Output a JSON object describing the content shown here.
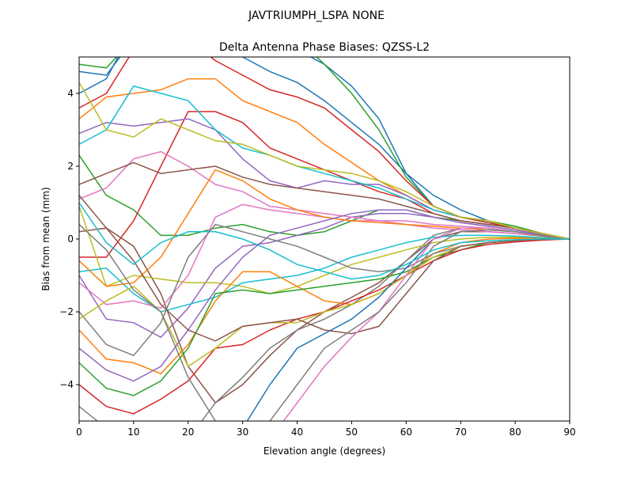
{
  "chart_data": {
    "type": "line",
    "suptitle": "JAVTRIUMPH_LSPA NONE",
    "title": "Delta Antenna Phase Biases: QZSS-L2",
    "xlabel": "Elevation angle (degrees)",
    "ylabel": "Bias from mean (mm)",
    "xlim": [
      0,
      90
    ],
    "ylim": [
      -5,
      5
    ],
    "xticks": [
      0,
      10,
      20,
      30,
      40,
      50,
      60,
      70,
      80,
      90
    ],
    "yticks": [
      -4,
      -2,
      0,
      2,
      4
    ],
    "grid": false,
    "colors": [
      "#1f77b4",
      "#ff7f0e",
      "#2ca02c",
      "#d62728",
      "#9467bd",
      "#8c564b",
      "#e377c2",
      "#7f7f7f",
      "#bcbd22",
      "#17becf"
    ],
    "x": [
      0,
      5,
      10,
      15,
      20,
      25,
      30,
      35,
      40,
      45,
      50,
      55,
      60,
      65,
      70,
      75,
      80,
      85,
      90
    ],
    "series": [
      {
        "values": [
          4.6,
          4.5,
          5.5,
          6,
          6,
          6,
          5.8,
          5.5,
          5.2,
          4.8,
          4.2,
          3.3,
          1.8,
          0.9,
          0.6,
          0.5,
          0.3,
          0.15,
          0
        ]
      },
      {
        "values": [
          3.3,
          3.9,
          4.0,
          4.1,
          4.4,
          4.4,
          3.8,
          3.5,
          3.2,
          2.6,
          2.1,
          1.6,
          1.2,
          0.8,
          0.6,
          0.5,
          0.3,
          0.15,
          0
        ]
      },
      {
        "values": [
          2.3,
          1.2,
          0.8,
          0.1,
          0.1,
          0.3,
          0.4,
          0.2,
          0.1,
          0.2,
          0.5,
          0.8,
          0.8,
          0.6,
          0.5,
          0.4,
          0.3,
          0.15,
          0
        ]
      },
      {
        "values": [
          -0.5,
          -0.5,
          0.5,
          2.0,
          3.5,
          3.5,
          3.2,
          2.5,
          2.2,
          1.9,
          1.6,
          1.3,
          1.1,
          0.7,
          0.5,
          0.4,
          0.3,
          0.15,
          0
        ]
      },
      {
        "values": [
          -1.0,
          -2.2,
          -2.3,
          -2.7,
          -1.9,
          -0.8,
          -0.2,
          -0.1,
          0.1,
          0.3,
          0.6,
          0.7,
          0.7,
          0.6,
          0.45,
          0.35,
          0.25,
          0.12,
          0
        ]
      },
      {
        "values": [
          0.2,
          0.3,
          -0.2,
          -1.5,
          -3.5,
          -4.5,
          -4.0,
          -3.2,
          -2.5,
          -2.0,
          -1.6,
          -1.2,
          -0.6,
          0,
          0.2,
          0.2,
          0.15,
          0.08,
          0
        ]
      },
      {
        "values": [
          1.1,
          1.4,
          2.2,
          2.4,
          2.0,
          1.5,
          1.3,
          0.9,
          0.8,
          0.7,
          0.6,
          0.5,
          0.4,
          0.3,
          0.25,
          0.2,
          0.15,
          0.1,
          0
        ]
      },
      {
        "values": [
          -4.6,
          -5.2,
          -6,
          -6,
          -5.5,
          -4.5,
          -3.8,
          -3.0,
          -2.5,
          -2.2,
          -1.8,
          -1.3,
          -0.6,
          0.1,
          0.3,
          0.3,
          0.2,
          0.1,
          0
        ]
      },
      {
        "values": [
          0.9,
          -1.3,
          -1.0,
          -1.1,
          -1.2,
          -1.2,
          -1.3,
          -1.5,
          -1.3,
          -1.0,
          -0.7,
          -0.5,
          -0.3,
          -0.1,
          0,
          0.05,
          0.05,
          0.02,
          0
        ]
      },
      {
        "values": [
          -0.9,
          -0.8,
          -1.5,
          -2.0,
          -1.8,
          -1.6,
          -1.2,
          -1.1,
          -1.0,
          -0.8,
          -0.5,
          -0.3,
          -0.1,
          0.05,
          0.1,
          0.1,
          0.08,
          0.04,
          0
        ]
      },
      {
        "values": [
          4.0,
          4.4,
          5.8,
          6,
          6,
          5.5,
          5.0,
          4.6,
          4.3,
          3.8,
          3.2,
          2.6,
          1.8,
          1.2,
          0.8,
          0.5,
          0.3,
          0.15,
          0
        ]
      },
      {
        "values": [
          -2.5,
          -3.3,
          -3.4,
          -3.7,
          -2.9,
          -1.7,
          -0.9,
          -0.9,
          -1.3,
          -1.7,
          -1.8,
          -1.5,
          -1.0,
          -0.4,
          -0.1,
          0,
          0.02,
          0.01,
          0
        ]
      },
      {
        "values": [
          -3.4,
          -4.1,
          -4.3,
          -3.9,
          -3.0,
          -1.5,
          -1.4,
          -1.5,
          -1.4,
          -1.3,
          -1.2,
          -1.1,
          -0.9,
          -0.5,
          -0.3,
          -0.1,
          -0.05,
          0,
          0
        ]
      },
      {
        "values": [
          -4.0,
          -4.6,
          -4.8,
          -4.4,
          -3.9,
          -3.0,
          -2.9,
          -2.5,
          -2.2,
          -2.0,
          -1.7,
          -1.4,
          -1.0,
          -0.6,
          -0.3,
          -0.15,
          -0.08,
          -0.03,
          0
        ]
      },
      {
        "values": [
          2.9,
          3.2,
          3.1,
          3.2,
          3.3,
          3.0,
          2.2,
          1.6,
          1.4,
          1.6,
          1.5,
          1.5,
          1.2,
          0.8,
          0.6,
          0.45,
          0.3,
          0.15,
          0
        ]
      },
      {
        "values": [
          1.5,
          1.8,
          2.1,
          1.8,
          1.9,
          2.0,
          1.7,
          1.5,
          1.4,
          1.3,
          1.2,
          1.1,
          0.9,
          0.7,
          0.5,
          0.4,
          0.3,
          0.15,
          0
        ]
      },
      {
        "values": [
          -1.2,
          -1.8,
          -1.7,
          -1.9,
          -1.0,
          0.6,
          0.95,
          0.8,
          0.7,
          0.6,
          0.5,
          0.5,
          0.5,
          0.4,
          0.35,
          0.3,
          0.2,
          0.1,
          0
        ]
      },
      {
        "values": [
          -2.0,
          -2.9,
          -3.2,
          -2.3,
          -0.5,
          0.4,
          0.2,
          0,
          -0.2,
          -0.5,
          -0.8,
          -0.9,
          -0.8,
          -0.4,
          -0.2,
          -0.1,
          -0.05,
          0,
          0
        ]
      },
      {
        "values": [
          -2.2,
          -1.7,
          -1.3,
          -2.0,
          -3.5,
          -3.0,
          -2.4,
          -2.3,
          -2.3,
          -2.0,
          -1.8,
          -1.5,
          -1.0,
          -0.5,
          -0.2,
          -0.1,
          -0.05,
          0,
          0
        ]
      },
      {
        "values": [
          2.6,
          3.0,
          4.2,
          4.0,
          3.8,
          3.0,
          2.5,
          2.3,
          2.0,
          1.8,
          1.6,
          1.4,
          1.1,
          0.8,
          0.6,
          0.45,
          0.3,
          0.15,
          0
        ]
      },
      {
        "values": [
          -5.5,
          -6,
          -6,
          -6,
          -6,
          -6,
          -5.2,
          -4.0,
          -3.0,
          -2.6,
          -2.2,
          -1.6,
          -0.8,
          0,
          0.3,
          0.3,
          0.2,
          0.1,
          0
        ]
      },
      {
        "values": [
          -0.6,
          -1.3,
          -1.2,
          -0.5,
          0.7,
          1.9,
          1.6,
          1.1,
          0.8,
          0.6,
          0.5,
          0.45,
          0.4,
          0.35,
          0.3,
          0.25,
          0.2,
          0.1,
          0
        ]
      },
      {
        "values": [
          4.8,
          4.7,
          5.5,
          6,
          6,
          6,
          6,
          6,
          5.5,
          4.8,
          4.0,
          3.0,
          1.7,
          0.9,
          0.6,
          0.5,
          0.35,
          0.15,
          0
        ]
      },
      {
        "values": [
          3.6,
          4.0,
          5.2,
          6,
          5.5,
          4.9,
          4.5,
          4.1,
          3.9,
          3.6,
          3.0,
          2.4,
          1.6,
          0.9,
          0.6,
          0.45,
          0.3,
          0.15,
          0
        ]
      },
      {
        "values": [
          -3.0,
          -3.6,
          -3.9,
          -3.5,
          -2.5,
          -1.4,
          -0.5,
          0.1,
          0.3,
          0.5,
          0.7,
          0.8,
          0.8,
          0.6,
          0.45,
          0.35,
          0.25,
          0.12,
          0
        ]
      },
      {
        "values": [
          1.2,
          0.3,
          -0.6,
          -1.8,
          -2.5,
          -2.8,
          -2.4,
          -2.3,
          -2.2,
          -2.5,
          -2.6,
          -2.4,
          -1.5,
          -0.6,
          -0.2,
          -0.1,
          -0.05,
          0,
          0
        ]
      },
      {
        "values": [
          -6,
          -6,
          -6,
          -6,
          -6,
          -6,
          -6,
          -5.5,
          -4.5,
          -3.5,
          -2.7,
          -2.0,
          -1.0,
          0,
          0.3,
          0.3,
          0.2,
          0.1,
          0
        ]
      },
      {
        "values": [
          0.4,
          -0.3,
          -1.4,
          -2.0,
          -3.8,
          -5.0,
          -5.5,
          -5.0,
          -4.0,
          -3.0,
          -2.5,
          -2.0,
          -1.2,
          -0.2,
          0.2,
          0.25,
          0.2,
          0.1,
          0
        ]
      },
      {
        "values": [
          4.3,
          3.0,
          2.8,
          3.3,
          3.0,
          2.7,
          2.6,
          2.3,
          2.0,
          1.9,
          1.8,
          1.6,
          1.3,
          0.9,
          0.6,
          0.5,
          0.3,
          0.15,
          0
        ]
      },
      {
        "values": [
          1.0,
          -0.1,
          -0.7,
          -0.1,
          0.2,
          0.2,
          0.0,
          -0.3,
          -0.7,
          -0.9,
          -1.1,
          -1.0,
          -0.7,
          -0.3,
          -0.1,
          -0.05,
          -0.02,
          0,
          0
        ]
      }
    ]
  }
}
